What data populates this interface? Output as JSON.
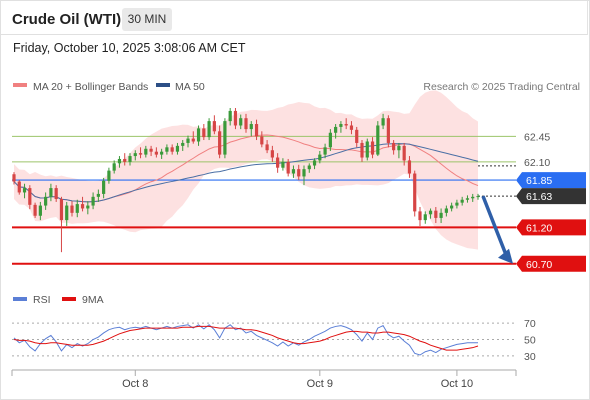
{
  "header": {
    "instrument": "Crude Oil (WTI)",
    "interval": "30 MIN"
  },
  "timestamp": "Friday, October 10, 2025 3:08:06 AM CET",
  "legend": {
    "ma20_label": "MA 20 + Bollinger Bands",
    "ma50_label": "MA 50",
    "credit": "Research © 2025 Trading Central"
  },
  "rsi_legend": {
    "rsi_label": "RSI",
    "ma_label": "9MA"
  },
  "colors": {
    "candle_up": "#3a9a3a",
    "candle_down": "#d64545",
    "ma20": "#f08080",
    "bollinger_fill": "#fddcdc",
    "ma50": "#4a6fa5",
    "resistance": "#9cc46a",
    "pivot": "#2a6ef2",
    "support": "#e01010",
    "last_tag": "#333333",
    "arrow": "#2f5fa8",
    "rsi": "#5b7fd6",
    "rsi_ma": "#e01010"
  },
  "chart_data": [
    {
      "type": "candlestick",
      "title": "Crude Oil (WTI)",
      "timeframe": "30 MIN",
      "x_tick_labels": [
        "Oct 8",
        "Oct 9",
        "Oct 10"
      ],
      "ylim": [
        60.45,
        62.95
      ],
      "levels": [
        {
          "value": 62.45,
          "label": "62.45",
          "kind": "resistance"
        },
        {
          "value": 62.1,
          "label": "62.10",
          "kind": "resistance"
        },
        {
          "value": 61.85,
          "label": "61.85",
          "kind": "pivot"
        },
        {
          "value": 61.63,
          "label": "61.63",
          "kind": "last"
        },
        {
          "value": 61.2,
          "label": "61.20",
          "kind": "support"
        },
        {
          "value": 60.7,
          "label": "60.70",
          "kind": "support"
        }
      ],
      "projection": {
        "from": 61.63,
        "to": 60.7
      },
      "series": [
        {
          "name": "MA 20 + Bollinger Bands",
          "type": "band"
        },
        {
          "name": "MA 50",
          "type": "line"
        }
      ],
      "candles": [
        [
          61.93,
          61.96,
          61.79,
          61.83
        ],
        [
          61.83,
          61.85,
          61.65,
          61.68
        ],
        [
          61.68,
          61.8,
          61.6,
          61.74
        ],
        [
          61.74,
          61.78,
          61.45,
          61.51
        ],
        [
          61.51,
          61.54,
          61.33,
          61.36
        ],
        [
          61.36,
          61.55,
          61.3,
          61.5
        ],
        [
          61.5,
          61.68,
          61.44,
          61.62
        ],
        [
          61.62,
          61.8,
          61.56,
          61.74
        ],
        [
          61.74,
          61.78,
          61.55,
          61.59
        ],
        [
          61.59,
          61.62,
          60.86,
          61.3
        ],
        [
          61.3,
          61.55,
          61.22,
          61.5
        ],
        [
          61.5,
          61.56,
          61.35,
          61.4
        ],
        [
          61.4,
          61.58,
          61.34,
          61.52
        ],
        [
          61.52,
          61.62,
          61.42,
          61.46
        ],
        [
          61.46,
          61.56,
          61.38,
          61.5
        ],
        [
          61.5,
          61.68,
          61.45,
          61.62
        ],
        [
          61.62,
          61.72,
          61.55,
          61.66
        ],
        [
          61.66,
          61.88,
          61.6,
          61.84
        ],
        [
          61.84,
          62.02,
          61.8,
          61.98
        ],
        [
          61.98,
          62.12,
          61.94,
          62.08
        ],
        [
          62.08,
          62.18,
          62.02,
          62.14
        ],
        [
          62.14,
          62.22,
          62.05,
          62.1
        ],
        [
          62.1,
          62.22,
          62.05,
          62.18
        ],
        [
          62.18,
          62.26,
          62.12,
          62.22
        ],
        [
          62.22,
          62.3,
          62.15,
          62.2
        ],
        [
          62.2,
          62.32,
          62.16,
          62.28
        ],
        [
          62.28,
          62.32,
          62.18,
          62.24
        ],
        [
          62.24,
          62.3,
          62.16,
          62.2
        ],
        [
          62.2,
          62.28,
          62.14,
          62.24
        ],
        [
          62.24,
          62.34,
          62.2,
          62.3
        ],
        [
          62.3,
          62.34,
          62.2,
          62.24
        ],
        [
          62.24,
          62.36,
          62.2,
          62.32
        ],
        [
          62.32,
          62.4,
          62.25,
          62.36
        ],
        [
          62.36,
          62.46,
          62.3,
          62.42
        ],
        [
          62.42,
          62.52,
          62.35,
          62.38
        ],
        [
          62.38,
          62.6,
          62.32,
          62.56
        ],
        [
          62.56,
          62.62,
          62.4,
          62.44
        ],
        [
          62.44,
          62.7,
          62.4,
          62.66
        ],
        [
          62.66,
          62.74,
          62.48,
          62.52
        ],
        [
          62.52,
          62.6,
          62.15,
          62.2
        ],
        [
          62.2,
          62.7,
          62.15,
          62.66
        ],
        [
          62.66,
          62.84,
          62.6,
          62.8
        ],
        [
          62.8,
          62.84,
          62.55,
          62.6
        ],
        [
          62.6,
          62.75,
          62.55,
          62.7
        ],
        [
          62.7,
          62.76,
          62.5,
          62.55
        ],
        [
          62.55,
          62.66,
          62.45,
          62.62
        ],
        [
          62.62,
          62.68,
          62.4,
          62.45
        ],
        [
          62.45,
          62.52,
          62.3,
          62.34
        ],
        [
          62.34,
          62.4,
          62.22,
          62.26
        ],
        [
          62.26,
          62.32,
          62.1,
          62.16
        ],
        [
          62.16,
          62.22,
          61.95,
          62.02
        ],
        [
          62.02,
          62.15,
          61.98,
          62.1
        ],
        [
          62.1,
          62.14,
          61.9,
          61.94
        ],
        [
          61.94,
          62.05,
          61.88,
          62.0
        ],
        [
          62.0,
          62.06,
          61.85,
          61.9
        ],
        [
          61.9,
          62.05,
          61.78,
          62.0
        ],
        [
          62.0,
          62.08,
          61.95,
          62.05
        ],
        [
          62.05,
          62.15,
          62.0,
          62.12
        ],
        [
          62.12,
          62.25,
          62.08,
          62.2
        ],
        [
          62.2,
          62.35,
          62.15,
          62.3
        ],
        [
          62.3,
          62.55,
          62.25,
          62.5
        ],
        [
          62.5,
          62.62,
          62.42,
          62.58
        ],
        [
          62.58,
          62.66,
          62.5,
          62.62
        ],
        [
          62.62,
          62.7,
          62.55,
          62.6
        ],
        [
          62.6,
          62.66,
          62.48,
          62.54
        ],
        [
          62.54,
          62.58,
          62.3,
          62.36
        ],
        [
          62.36,
          62.4,
          62.1,
          62.16
        ],
        [
          62.16,
          62.42,
          62.12,
          62.38
        ],
        [
          62.38,
          62.44,
          62.15,
          62.2
        ],
        [
          62.2,
          62.66,
          62.18,
          62.6
        ],
        [
          62.6,
          62.76,
          62.55,
          62.7
        ],
        [
          62.7,
          62.74,
          62.3,
          62.36
        ],
        [
          62.36,
          62.4,
          62.2,
          62.26
        ],
        [
          62.26,
          62.36,
          62.15,
          62.32
        ],
        [
          62.32,
          62.36,
          62.05,
          62.12
        ],
        [
          62.12,
          62.18,
          61.88,
          61.94
        ],
        [
          61.94,
          61.98,
          61.35,
          61.42
        ],
        [
          61.42,
          61.48,
          61.22,
          61.3
        ],
        [
          61.3,
          61.42,
          61.25,
          61.38
        ],
        [
          61.38,
          61.46,
          61.32,
          61.43
        ],
        [
          61.43,
          61.48,
          61.26,
          61.33
        ],
        [
          61.33,
          61.46,
          61.26,
          61.4
        ],
        [
          61.4,
          61.5,
          61.35,
          61.46
        ],
        [
          61.46,
          61.54,
          61.42,
          61.5
        ],
        [
          61.5,
          61.58,
          61.46,
          61.54
        ],
        [
          61.54,
          61.62,
          61.5,
          61.58
        ],
        [
          61.58,
          61.64,
          61.54,
          61.6
        ],
        [
          61.6,
          61.66,
          61.55,
          61.62
        ],
        [
          61.62,
          61.66,
          61.58,
          61.63
        ]
      ]
    },
    {
      "type": "line",
      "title": "RSI",
      "ylim": [
        20,
        80
      ],
      "y_tick_labels": [
        "70",
        "50",
        "30"
      ],
      "series": [
        {
          "name": "RSI",
          "values": [
            52,
            46,
            49,
            41,
            36,
            45,
            51,
            55,
            47,
            36,
            44,
            40,
            45,
            42,
            45,
            50,
            53,
            58,
            62,
            64,
            65,
            62,
            64,
            65,
            64,
            66,
            64,
            62,
            64,
            66,
            64,
            66,
            67,
            68,
            64,
            68,
            63,
            68,
            62,
            52,
            64,
            68,
            62,
            64,
            58,
            60,
            55,
            52,
            49,
            46,
            42,
            47,
            42,
            46,
            43,
            47,
            50,
            54,
            57,
            60,
            64,
            66,
            67,
            65,
            62,
            56,
            48,
            58,
            50,
            64,
            67,
            56,
            52,
            54,
            48,
            43,
            33,
            31,
            35,
            37,
            34,
            38,
            40,
            42,
            44,
            45,
            46,
            46,
            46
          ]
        },
        {
          "name": "9MA",
          "values": [
            50,
            49,
            49,
            48,
            46,
            45,
            45,
            46,
            46,
            45,
            44,
            43,
            43,
            43,
            43,
            44,
            46,
            48,
            51,
            54,
            57,
            59,
            61,
            62,
            63,
            64,
            64,
            64,
            64,
            64,
            64,
            64,
            65,
            65,
            65,
            66,
            66,
            66,
            65,
            64,
            64,
            64,
            64,
            63,
            62,
            62,
            61,
            59,
            57,
            55,
            52,
            50,
            48,
            46,
            45,
            45,
            46,
            47,
            48,
            50,
            53,
            55,
            57,
            59,
            60,
            60,
            59,
            59,
            58,
            58,
            59,
            59,
            58,
            57,
            56,
            54,
            51,
            48,
            46,
            43,
            41,
            39,
            37,
            37,
            37,
            38,
            39,
            40,
            42
          ]
        }
      ]
    }
  ]
}
